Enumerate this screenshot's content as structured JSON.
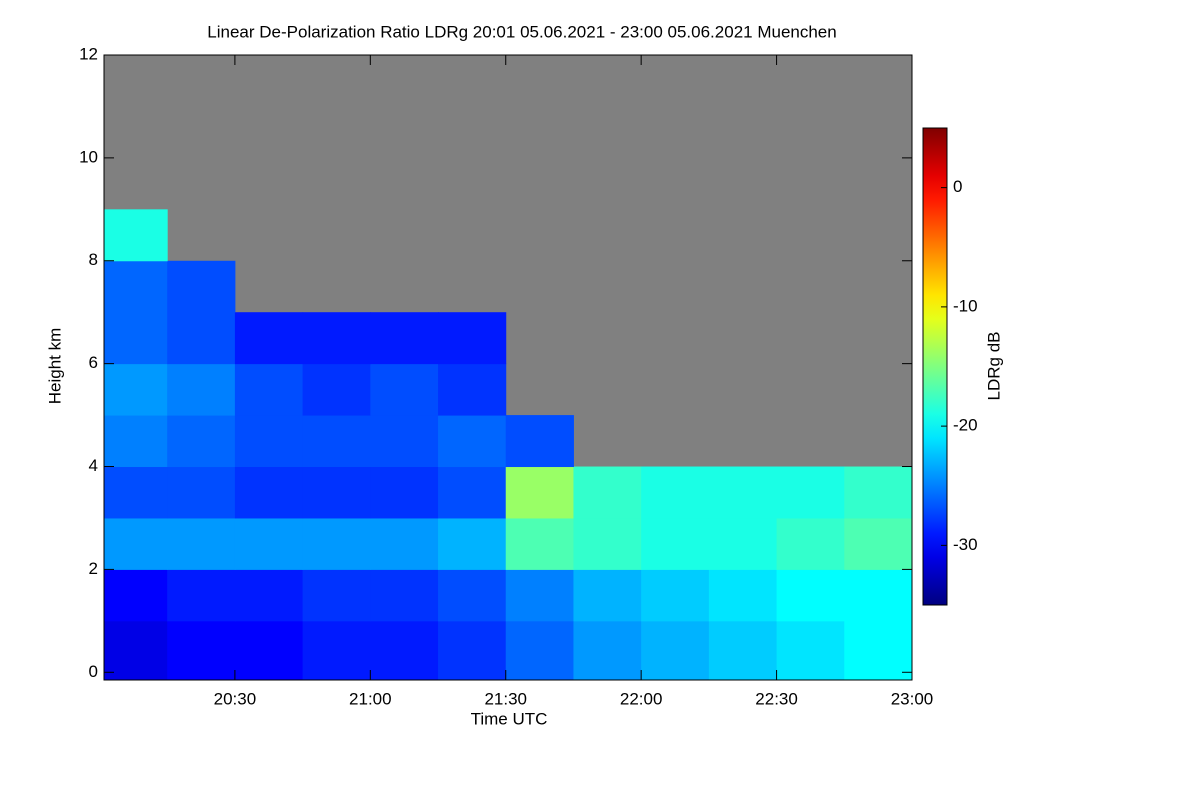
{
  "chart_data": {
    "type": "heatmap",
    "title": "Linear De-Polarization Ratio LDRg   20:01 05.06.2021 - 23:00 05.06.2021 Muenchen",
    "xlabel": "Time UTC",
    "ylabel": "Height km",
    "colorbar_label": "LDRg dB",
    "x_edges": [
      20.0167,
      20.25,
      20.5,
      20.75,
      21.0,
      21.25,
      21.5,
      21.75,
      22.0,
      22.25,
      22.5,
      22.75,
      23.0
    ],
    "y_edges": [
      0,
      1,
      2,
      3,
      4,
      5,
      6,
      7,
      8,
      9
    ],
    "values": [
      [
        -31,
        -30,
        -30,
        -29,
        -29,
        -28,
        -26,
        -24,
        -23,
        -22,
        -21,
        -20
      ],
      [
        -30,
        -29,
        -29,
        -28,
        -28,
        -27,
        -25,
        -23,
        -22,
        -21,
        -20,
        -20
      ],
      [
        -24,
        -24,
        -24,
        -24,
        -24,
        -23,
        -17,
        -18,
        -19,
        -19,
        -18,
        -17
      ],
      [
        -27,
        -27,
        -28,
        -28,
        -28,
        -27,
        -14,
        -18,
        -19,
        -19,
        -19,
        -18
      ],
      [
        -25,
        -26,
        -27,
        -27,
        -27,
        -26,
        -27,
        null,
        null,
        null,
        null,
        null
      ],
      [
        -24,
        -25,
        -27,
        -28,
        -27,
        -28,
        null,
        null,
        null,
        null,
        null,
        null
      ],
      [
        -26,
        -27,
        -29,
        -29,
        -29,
        -29,
        null,
        null,
        null,
        null,
        null,
        null
      ],
      [
        -26,
        -27,
        null,
        null,
        null,
        null,
        null,
        null,
        null,
        null,
        null,
        null
      ],
      [
        -19,
        null,
        null,
        null,
        null,
        null,
        null,
        null,
        null,
        null,
        null,
        null
      ]
    ],
    "nodata_color": "#808080",
    "xlim": [
      20.0167,
      23.0
    ],
    "xticks": [
      {
        "value": 20.5,
        "label": "20:30"
      },
      {
        "value": 21.0,
        "label": "21:00"
      },
      {
        "value": 21.5,
        "label": "21:30"
      },
      {
        "value": 22.0,
        "label": "22:00"
      },
      {
        "value": 22.5,
        "label": "22:30"
      },
      {
        "value": 23.0,
        "label": "23:00"
      }
    ],
    "ylim": [
      -0.15,
      12
    ],
    "yticks": [
      0,
      2,
      4,
      6,
      8,
      10,
      12
    ],
    "clim": [
      -35,
      5
    ],
    "cticks": [
      0,
      -10,
      -20,
      -30
    ],
    "colormap": "jet"
  }
}
